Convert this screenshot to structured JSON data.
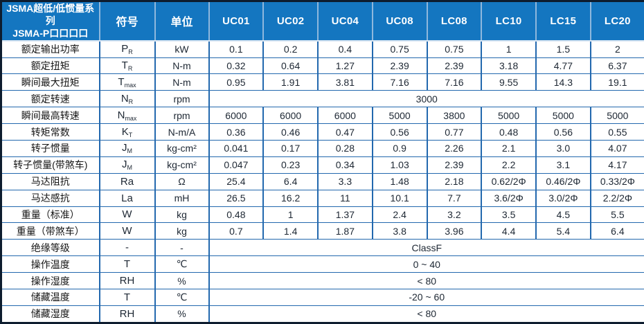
{
  "header": {
    "title_line1": "JSMA超低/低惯量系列",
    "title_line2": "JSMA-P口口口口",
    "symbol_label": "符号",
    "unit_label": "单位",
    "models": [
      "UC01",
      "UC02",
      "UC04",
      "UC08",
      "LC08",
      "LC10",
      "LC15",
      "LC20"
    ]
  },
  "colors": {
    "header_bg": "#1476c0",
    "header_text": "#ffffff",
    "header_divider": "#8fb8dd",
    "grid_line": "#2268ae",
    "outer_border": "#0d1c2e",
    "body_text": "#1d2733"
  },
  "table": {
    "rows": [
      {
        "label": "额定输出功率",
        "symbol": "P",
        "sub": "R",
        "unit": "kW",
        "values": [
          "0.1",
          "0.2",
          "0.4",
          "0.75",
          "0.75",
          "1",
          "1.5",
          "2"
        ]
      },
      {
        "label": "额定扭矩",
        "symbol": "T",
        "sub": "R",
        "unit": "N-m",
        "values": [
          "0.32",
          "0.64",
          "1.27",
          "2.39",
          "2.39",
          "3.18",
          "4.77",
          "6.37"
        ]
      },
      {
        "label": "瞬间最大扭矩",
        "symbol": "T",
        "sub": "max",
        "unit": "N-m",
        "values": [
          "0.95",
          "1.91",
          "3.81",
          "7.16",
          "7.16",
          "9.55",
          "14.3",
          "19.1"
        ]
      },
      {
        "label": "额定转速",
        "symbol": "N",
        "sub": "R",
        "unit": "rpm",
        "merged": "3000"
      },
      {
        "label": "瞬间最高转速",
        "symbol": "N",
        "sub": "max",
        "unit": "rpm",
        "values": [
          "6000",
          "6000",
          "6000",
          "5000",
          "3800",
          "5000",
          "5000",
          "5000"
        ]
      },
      {
        "label": "转矩常数",
        "symbol": "K",
        "sub": "T",
        "unit": "N-m/A",
        "values": [
          "0.36",
          "0.46",
          "0.47",
          "0.56",
          "0.77",
          "0.48",
          "0.56",
          "0.55"
        ]
      },
      {
        "label": "转子惯量",
        "symbol": "J",
        "sub": "M",
        "unit": "kg-cm²",
        "values": [
          "0.041",
          "0.17",
          "0.28",
          "0.9",
          "2.26",
          "2.1",
          "3.0",
          "4.07"
        ]
      },
      {
        "label": "转子惯量(带煞车)",
        "symbol": "J",
        "sub": "M",
        "unit": "kg-cm²",
        "values": [
          "0.047",
          "0.23",
          "0.34",
          "1.03",
          "2.39",
          "2.2",
          "3.1",
          "4.17"
        ]
      },
      {
        "label": "马达阻抗",
        "symbol": "Ra",
        "unit": "Ω",
        "values": [
          "25.4",
          "6.4",
          "3.3",
          "1.48",
          "2.18",
          "0.62/2Φ",
          "0.46/2Φ",
          "0.33/2Φ"
        ]
      },
      {
        "label": "马达感抗",
        "symbol": "La",
        "unit": "mH",
        "values": [
          "26.5",
          "16.2",
          "11",
          "10.1",
          "7.7",
          "3.6/2Φ",
          "3.0/2Φ",
          "2.2/2Φ"
        ]
      },
      {
        "label": "重量（标准）",
        "symbol": "W",
        "unit": "kg",
        "values": [
          "0.48",
          "1",
          "1.37",
          "2.4",
          "3.2",
          "3.5",
          "4.5",
          "5.5"
        ]
      },
      {
        "label": "重量（带煞车）",
        "symbol": "W",
        "unit": "kg",
        "values": [
          "0.7",
          "1.4",
          "1.87",
          "3.8",
          "3.96",
          "4.4",
          "5.4",
          "6.4"
        ]
      },
      {
        "label": "绝缘等级",
        "symbol": "-",
        "unit": "-",
        "merged": "ClassF"
      },
      {
        "label": "操作温度",
        "symbol": "T",
        "unit": "℃",
        "merged": "0 ~ 40"
      },
      {
        "label": "操作湿度",
        "symbol": "RH",
        "unit": "%",
        "merged": "< 80"
      },
      {
        "label": "储藏温度",
        "symbol": "T",
        "unit": "℃",
        "merged": "-20 ~ 60"
      },
      {
        "label": "储藏湿度",
        "symbol": "RH",
        "unit": "%",
        "merged": "< 80"
      }
    ]
  }
}
